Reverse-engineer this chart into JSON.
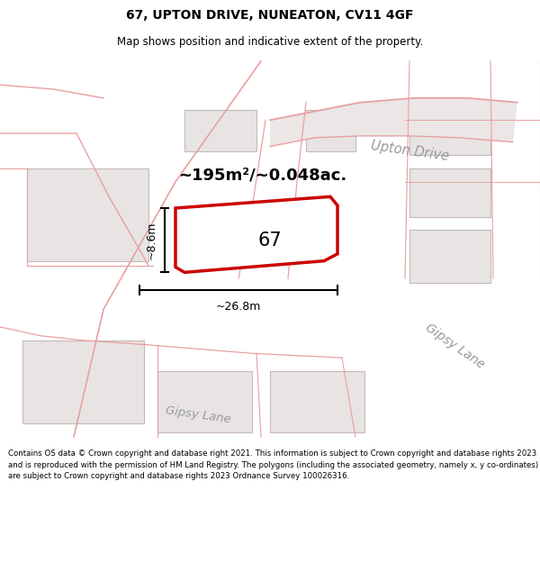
{
  "title": "67, UPTON DRIVE, NUNEATON, CV11 4GF",
  "subtitle": "Map shows position and indicative extent of the property.",
  "footer": "Contains OS data © Crown copyright and database right 2021. This information is subject to Crown copyright and database rights 2023 and is reproduced with the permission of HM Land Registry. The polygons (including the associated geometry, namely x, y co-ordinates) are subject to Crown copyright and database rights 2023 Ordnance Survey 100026316.",
  "area_text": "~195m²/~0.048ac.",
  "label_67": "67",
  "dim_width": "~26.8m",
  "dim_height": "~8.6m",
  "street_upton": "Upton Drive",
  "street_gipsy_right": "Gipsy Lane",
  "street_gipsy_bottom": "Gipsy Lane",
  "highlight_color": "#cc0000",
  "pink": "#e8a0a0",
  "building_fill": "#e8e4e4",
  "building_outline": "#c8b8b8",
  "map_bg": "#f5f3f3",
  "road_fill": "#e8e0e0",
  "title_fontsize": 10,
  "subtitle_fontsize": 8.5,
  "footer_fontsize": 6.2
}
